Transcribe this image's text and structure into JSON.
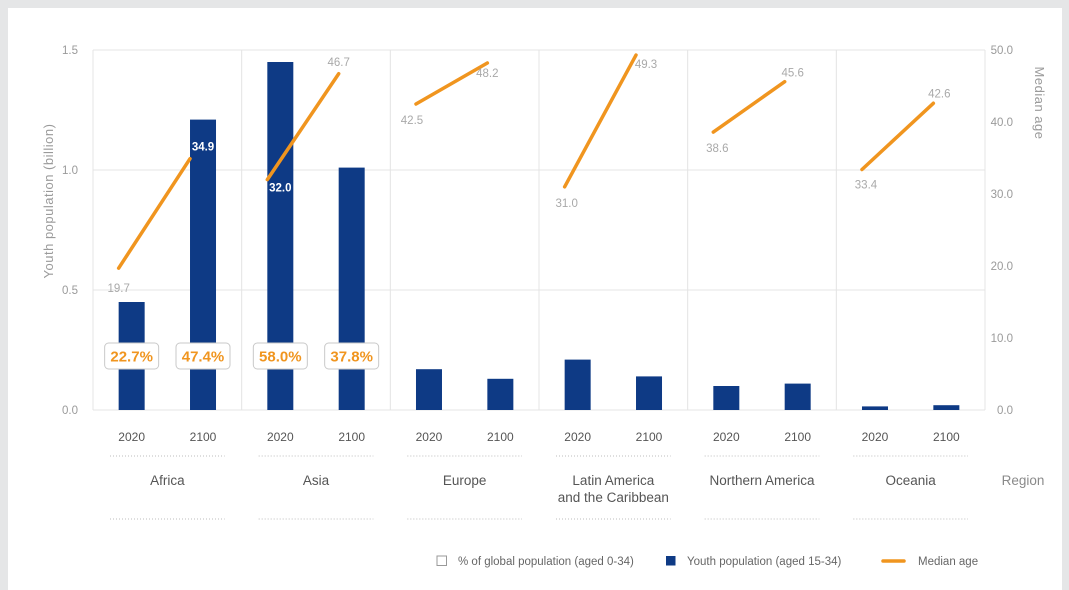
{
  "chart_data": {
    "type": "bar",
    "left_axis": {
      "label": "Youth population (billion)",
      "ticks": [
        "0.0",
        "0.5",
        "1.0",
        "1.5"
      ],
      "range": [
        0,
        1.5
      ]
    },
    "right_axis": {
      "label": "Median age",
      "ticks": [
        "0.0",
        "10.0",
        "20.0",
        "30.0",
        "40.0",
        "50.0"
      ],
      "range": [
        0,
        50
      ]
    },
    "x_axis_label": "Region",
    "years": [
      "2020",
      "2100"
    ],
    "regions": [
      {
        "name": "Africa",
        "youth_population": [
          0.45,
          1.21
        ],
        "median_age": [
          19.7,
          34.9
        ],
        "median_age_labels": [
          "19.7",
          "34.9"
        ],
        "share_of_global": [
          "22.7%",
          "47.4%"
        ]
      },
      {
        "name": "Asia",
        "youth_population": [
          1.45,
          1.01
        ],
        "median_age": [
          32.0,
          46.7
        ],
        "median_age_labels": [
          "32.0",
          "46.7"
        ],
        "share_of_global": [
          "58.0%",
          "37.8%"
        ]
      },
      {
        "name": "Europe",
        "youth_population": [
          0.17,
          0.13
        ],
        "median_age": [
          42.5,
          48.2
        ],
        "median_age_labels": [
          "42.5",
          "48.2"
        ]
      },
      {
        "name": "Latin America and the Caribbean",
        "name_lines": [
          "Latin America",
          "and the Caribbean"
        ],
        "youth_population": [
          0.21,
          0.14
        ],
        "median_age": [
          31.0,
          49.3
        ],
        "median_age_labels": [
          "31.0",
          "49.3"
        ]
      },
      {
        "name": "Northern America",
        "youth_population": [
          0.1,
          0.11
        ],
        "median_age": [
          38.6,
          45.6
        ],
        "median_age_labels": [
          "38.6",
          "45.6"
        ]
      },
      {
        "name": "Oceania",
        "youth_population": [
          0.015,
          0.02
        ],
        "median_age": [
          33.4,
          42.6
        ],
        "median_age_labels": [
          "33.4",
          "42.6"
        ]
      }
    ],
    "legend": {
      "share": "% of global population (aged 0-34)",
      "youth": "Youth population (aged 15-34)",
      "median": "Median age"
    },
    "colors": {
      "bar": "#0e3a85",
      "line": "#f0951f",
      "grid": "#e4e4e4",
      "tick": "#9a9a9a",
      "label": "#555555"
    }
  }
}
